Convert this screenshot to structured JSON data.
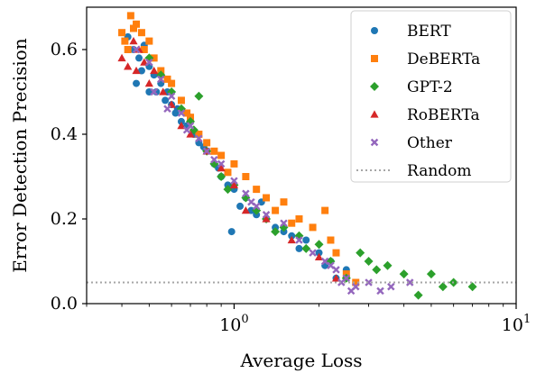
{
  "chart_data": {
    "type": "scatter",
    "xlabel": "Average Loss",
    "ylabel": "Error Detection Precision",
    "xscale": "log",
    "xlim": [
      0.3,
      10
    ],
    "ylim": [
      0,
      0.7
    ],
    "grid": false,
    "legend_position": "top-right",
    "x_ticks": [
      {
        "value": 1,
        "label": "10^0",
        "base": "10",
        "exp": "0"
      },
      {
        "value": 10,
        "label": "10^1",
        "base": "10",
        "exp": "1"
      }
    ],
    "y_ticks": [
      {
        "value": 0.0,
        "label": "0.0"
      },
      {
        "value": 0.2,
        "label": "0.2"
      },
      {
        "value": 0.4,
        "label": "0.4"
      },
      {
        "value": 0.6,
        "label": "0.6"
      }
    ],
    "reference_line": {
      "name": "Random",
      "y": 0.05,
      "color": "#a6a6a6",
      "style": "dotted"
    },
    "series": [
      {
        "name": "BERT",
        "color": "#1f77b4",
        "marker": "circle",
        "points": [
          [
            0.42,
            0.63
          ],
          [
            0.44,
            0.6
          ],
          [
            0.46,
            0.58
          ],
          [
            0.48,
            0.61
          ],
          [
            0.5,
            0.56
          ],
          [
            0.52,
            0.54
          ],
          [
            0.55,
            0.52
          ],
          [
            0.58,
            0.5
          ],
          [
            0.6,
            0.47
          ],
          [
            0.62,
            0.45
          ],
          [
            0.65,
            0.43
          ],
          [
            0.68,
            0.42
          ],
          [
            0.72,
            0.4
          ],
          [
            0.75,
            0.38
          ],
          [
            0.8,
            0.36
          ],
          [
            0.85,
            0.33
          ],
          [
            0.9,
            0.3
          ],
          [
            0.95,
            0.28
          ],
          [
            1.0,
            0.27
          ],
          [
            1.1,
            0.25
          ],
          [
            1.15,
            0.22
          ],
          [
            1.2,
            0.21
          ],
          [
            1.3,
            0.2
          ],
          [
            1.4,
            0.18
          ],
          [
            1.5,
            0.17
          ],
          [
            1.6,
            0.16
          ],
          [
            1.8,
            0.15
          ],
          [
            2.0,
            0.12
          ],
          [
            2.2,
            0.1
          ],
          [
            2.5,
            0.08
          ],
          [
            0.47,
            0.55
          ],
          [
            0.53,
            0.5
          ],
          [
            0.57,
            0.48
          ],
          [
            0.63,
            0.46
          ],
          [
            0.7,
            0.44
          ],
          [
            0.78,
            0.37
          ],
          [
            0.88,
            0.32
          ],
          [
            0.98,
            0.17
          ],
          [
            1.05,
            0.23
          ],
          [
            1.25,
            0.24
          ],
          [
            1.7,
            0.13
          ],
          [
            2.1,
            0.09
          ],
          [
            2.3,
            0.06
          ],
          [
            0.45,
            0.52
          ],
          [
            0.5,
            0.5
          ]
        ]
      },
      {
        "name": "DeBERTa",
        "color": "#ff7f0e",
        "marker": "square",
        "points": [
          [
            0.4,
            0.64
          ],
          [
            0.41,
            0.62
          ],
          [
            0.43,
            0.68
          ],
          [
            0.45,
            0.66
          ],
          [
            0.47,
            0.64
          ],
          [
            0.5,
            0.62
          ],
          [
            0.52,
            0.58
          ],
          [
            0.55,
            0.55
          ],
          [
            0.6,
            0.52
          ],
          [
            0.65,
            0.48
          ],
          [
            0.7,
            0.44
          ],
          [
            0.75,
            0.4
          ],
          [
            0.8,
            0.38
          ],
          [
            0.9,
            0.35
          ],
          [
            1.0,
            0.33
          ],
          [
            1.1,
            0.3
          ],
          [
            1.2,
            0.27
          ],
          [
            1.3,
            0.25
          ],
          [
            1.5,
            0.24
          ],
          [
            1.7,
            0.2
          ],
          [
            1.9,
            0.18
          ],
          [
            2.1,
            0.22
          ],
          [
            2.3,
            0.12
          ],
          [
            2.5,
            0.07
          ],
          [
            2.7,
            0.05
          ],
          [
            0.44,
            0.65
          ],
          [
            0.48,
            0.6
          ],
          [
            0.58,
            0.53
          ],
          [
            0.68,
            0.45
          ],
          [
            0.85,
            0.36
          ],
          [
            0.95,
            0.31
          ],
          [
            1.4,
            0.22
          ],
          [
            1.6,
            0.19
          ],
          [
            2.2,
            0.15
          ],
          [
            0.42,
            0.6
          ]
        ]
      },
      {
        "name": "GPT-2",
        "color": "#2ca02c",
        "marker": "diamond",
        "points": [
          [
            0.5,
            0.58
          ],
          [
            0.55,
            0.54
          ],
          [
            0.6,
            0.5
          ],
          [
            0.65,
            0.46
          ],
          [
            0.7,
            0.43
          ],
          [
            0.75,
            0.49
          ],
          [
            0.8,
            0.36
          ],
          [
            0.85,
            0.33
          ],
          [
            0.9,
            0.3
          ],
          [
            1.0,
            0.28
          ],
          [
            1.1,
            0.25
          ],
          [
            1.2,
            0.22
          ],
          [
            1.3,
            0.2
          ],
          [
            1.5,
            0.18
          ],
          [
            1.7,
            0.16
          ],
          [
            2.0,
            0.14
          ],
          [
            2.2,
            0.1
          ],
          [
            2.5,
            0.06
          ],
          [
            2.8,
            0.12
          ],
          [
            3.0,
            0.1
          ],
          [
            3.2,
            0.08
          ],
          [
            3.5,
            0.09
          ],
          [
            4.0,
            0.07
          ],
          [
            4.5,
            0.02
          ],
          [
            5.0,
            0.07
          ],
          [
            5.5,
            0.04
          ],
          [
            6.0,
            0.05
          ],
          [
            7.0,
            0.04
          ],
          [
            0.72,
            0.41
          ],
          [
            0.95,
            0.27
          ],
          [
            1.4,
            0.17
          ],
          [
            1.8,
            0.13
          ]
        ]
      },
      {
        "name": "RoBERTa",
        "color": "#d62728",
        "marker": "triangle",
        "points": [
          [
            0.4,
            0.58
          ],
          [
            0.42,
            0.56
          ],
          [
            0.44,
            0.62
          ],
          [
            0.46,
            0.6
          ],
          [
            0.48,
            0.57
          ],
          [
            0.52,
            0.55
          ],
          [
            0.56,
            0.5
          ],
          [
            0.6,
            0.47
          ],
          [
            0.65,
            0.42
          ],
          [
            0.7,
            0.4
          ],
          [
            0.8,
            0.36
          ],
          [
            0.9,
            0.32
          ],
          [
            1.0,
            0.28
          ],
          [
            1.1,
            0.22
          ],
          [
            1.3,
            0.2
          ],
          [
            1.6,
            0.15
          ],
          [
            2.0,
            0.11
          ],
          [
            2.3,
            0.06
          ],
          [
            0.45,
            0.55
          ],
          [
            0.5,
            0.52
          ]
        ]
      },
      {
        "name": "Other",
        "color": "#9467bd",
        "marker": "x",
        "points": [
          [
            0.45,
            0.6
          ],
          [
            0.5,
            0.57
          ],
          [
            0.55,
            0.53
          ],
          [
            0.6,
            0.49
          ],
          [
            0.65,
            0.45
          ],
          [
            0.7,
            0.42
          ],
          [
            0.75,
            0.39
          ],
          [
            0.8,
            0.36
          ],
          [
            0.9,
            0.33
          ],
          [
            1.0,
            0.29
          ],
          [
            1.1,
            0.26
          ],
          [
            1.2,
            0.23
          ],
          [
            1.3,
            0.21
          ],
          [
            1.5,
            0.19
          ],
          [
            1.7,
            0.15
          ],
          [
            1.9,
            0.12
          ],
          [
            2.1,
            0.1
          ],
          [
            2.3,
            0.08
          ],
          [
            2.5,
            0.06
          ],
          [
            2.7,
            0.04
          ],
          [
            3.0,
            0.05
          ],
          [
            3.3,
            0.03
          ],
          [
            3.6,
            0.04
          ],
          [
            4.2,
            0.05
          ],
          [
            0.52,
            0.5
          ],
          [
            0.58,
            0.46
          ],
          [
            0.68,
            0.41
          ],
          [
            0.85,
            0.34
          ],
          [
            1.15,
            0.24
          ],
          [
            2.2,
            0.09
          ],
          [
            2.4,
            0.05
          ],
          [
            2.6,
            0.03
          ]
        ]
      }
    ]
  }
}
